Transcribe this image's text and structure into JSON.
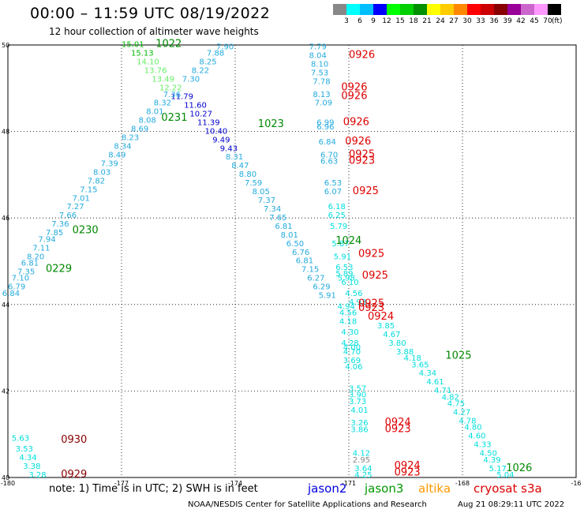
{
  "header": {
    "title": "00:00 – 11:59 UTC 08/19/2022",
    "subtitle": "12 hour collection of altimeter wave heights"
  },
  "legend": {
    "unit": "(ft)",
    "bins": [
      {
        "label": "3",
        "color": "#888888"
      },
      {
        "label": "6",
        "color": "#00ffff"
      },
      {
        "label": "9",
        "color": "#00bfff"
      },
      {
        "label": "12",
        "color": "#0000ff"
      },
      {
        "label": "15",
        "color": "#00ff00"
      },
      {
        "label": "18",
        "color": "#00d000"
      },
      {
        "label": "21",
        "color": "#009000"
      },
      {
        "label": "24",
        "color": "#ffff00"
      },
      {
        "label": "27",
        "color": "#ffcc00"
      },
      {
        "label": "30",
        "color": "#ff8800"
      },
      {
        "label": "33",
        "color": "#ff0000"
      },
      {
        "label": "36",
        "color": "#cc0000"
      },
      {
        "label": "39",
        "color": "#880000"
      },
      {
        "label": "42",
        "color": "#990099"
      },
      {
        "label": "45",
        "color": "#cc66cc"
      },
      {
        "label": "70",
        "color": "#ff99ff"
      },
      {
        "label": "",
        "color": "#000000"
      }
    ]
  },
  "axes": {
    "lon_labels": [
      "-180",
      "-177",
      "-174",
      "-171",
      "-168",
      "-16"
    ],
    "lat_labels": [
      "50",
      "48",
      "46",
      "44",
      "42",
      "40"
    ]
  },
  "chart_data": {
    "type": "scatter",
    "x_range": [
      -180,
      -165
    ],
    "y_range": [
      40,
      50
    ],
    "passes": [
      {
        "label": "1022",
        "lon": -176.1,
        "lat": 49.95,
        "color": "#008800"
      },
      {
        "label": "0231",
        "lon": -175.95,
        "lat": 48.25,
        "color": "#008800"
      },
      {
        "label": "1023",
        "lon": -173.4,
        "lat": 48.1,
        "color": "#008800"
      },
      {
        "label": "0230",
        "lon": -178.3,
        "lat": 45.65,
        "color": "#008800"
      },
      {
        "label": "0229",
        "lon": -179.0,
        "lat": 44.75,
        "color": "#008800"
      },
      {
        "label": "1024",
        "lon": -171.35,
        "lat": 45.4,
        "color": "#008800"
      },
      {
        "label": "1025",
        "lon": -168.45,
        "lat": 42.75,
        "color": "#008800"
      },
      {
        "label": "1026",
        "lon": -166.85,
        "lat": 40.15,
        "color": "#008800"
      },
      {
        "label": "0926",
        "lon": -171.0,
        "lat": 49.7,
        "color": "#dd0000"
      },
      {
        "label": "0926",
        "lon": -171.2,
        "lat": 48.95,
        "color": "#dd0000"
      },
      {
        "label": "0926",
        "lon": -171.2,
        "lat": 48.75,
        "color": "#dd0000"
      },
      {
        "label": "0926",
        "lon": -171.15,
        "lat": 48.15,
        "color": "#dd0000"
      },
      {
        "label": "0926",
        "lon": -171.1,
        "lat": 47.7,
        "color": "#dd0000"
      },
      {
        "label": "0925",
        "lon": -171.0,
        "lat": 47.4,
        "color": "#dd0000"
      },
      {
        "label": "0923",
        "lon": -171.0,
        "lat": 47.25,
        "color": "#dd0000"
      },
      {
        "label": "0925",
        "lon": -170.9,
        "lat": 46.55,
        "color": "#dd0000"
      },
      {
        "label": "0925",
        "lon": -170.75,
        "lat": 45.1,
        "color": "#dd0000"
      },
      {
        "label": "0925",
        "lon": -170.65,
        "lat": 44.6,
        "color": "#dd0000"
      },
      {
        "label": "0925",
        "lon": -170.75,
        "lat": 43.95,
        "color": "#dd0000"
      },
      {
        "label": "0923",
        "lon": -170.75,
        "lat": 43.85,
        "color": "#dd0000"
      },
      {
        "label": "0924",
        "lon": -170.5,
        "lat": 43.65,
        "color": "#dd0000"
      },
      {
        "label": "0924",
        "lon": -170.05,
        "lat": 41.2,
        "color": "#dd0000"
      },
      {
        "label": "0923",
        "lon": -170.05,
        "lat": 41.05,
        "color": "#dd0000"
      },
      {
        "label": "0924",
        "lon": -169.8,
        "lat": 40.2,
        "color": "#dd0000"
      },
      {
        "label": "0923",
        "lon": -169.8,
        "lat": 40.05,
        "color": "#dd0000"
      },
      {
        "label": "0930",
        "lon": -178.6,
        "lat": 40.8,
        "color": "#880000"
      },
      {
        "label": "0929",
        "lon": -178.6,
        "lat": 40.0,
        "color": "#880000"
      }
    ],
    "points": [
      {
        "v": "15.01",
        "lon": -177.0,
        "lat": 49.95,
        "color": "#00bb00"
      },
      {
        "v": "15.13",
        "lon": -176.75,
        "lat": 49.75,
        "color": "#00bb00"
      },
      {
        "v": "14.10",
        "lon": -176.6,
        "lat": 49.55,
        "color": "#66ee66"
      },
      {
        "v": "13.76",
        "lon": -176.4,
        "lat": 49.35,
        "color": "#66ee66"
      },
      {
        "v": "13.49",
        "lon": -176.2,
        "lat": 49.15,
        "color": "#66ee66"
      },
      {
        "v": "12.22",
        "lon": -176.0,
        "lat": 48.95,
        "color": "#66ee66"
      },
      {
        "v": "11.79",
        "lon": -175.7,
        "lat": 48.75,
        "color": "#0000cc"
      },
      {
        "v": "11.60",
        "lon": -175.35,
        "lat": 48.55,
        "color": "#0000cc"
      },
      {
        "v": "10.27",
        "lon": -175.2,
        "lat": 48.35,
        "color": "#0000cc"
      },
      {
        "v": "11.39",
        "lon": -175.0,
        "lat": 48.15,
        "color": "#0000cc"
      },
      {
        "v": "10.40",
        "lon": -174.8,
        "lat": 47.95,
        "color": "#0000cc"
      },
      {
        "v": "9.49",
        "lon": -174.6,
        "lat": 47.75,
        "color": "#0000cc"
      },
      {
        "v": "9.43",
        "lon": -174.4,
        "lat": 47.55,
        "color": "#0000cc"
      },
      {
        "v": "7.90",
        "lon": -174.5,
        "lat": 49.9,
        "color": "#22aadd"
      },
      {
        "v": "7.88",
        "lon": -174.75,
        "lat": 49.75,
        "color": "#22aadd"
      },
      {
        "v": "8.25",
        "lon": -174.95,
        "lat": 49.55,
        "color": "#22aadd"
      },
      {
        "v": "8.22",
        "lon": -175.15,
        "lat": 49.35,
        "color": "#22aadd"
      },
      {
        "v": "7.30",
        "lon": -175.4,
        "lat": 49.15,
        "color": "#22aadd"
      },
      {
        "v": "7.36",
        "lon": -175.9,
        "lat": 48.8,
        "color": "#22aadd"
      },
      {
        "v": "8.32",
        "lon": -176.15,
        "lat": 48.6,
        "color": "#22aadd"
      },
      {
        "v": "8.01",
        "lon": -176.35,
        "lat": 48.4,
        "color": "#22aadd"
      },
      {
        "v": "8.08",
        "lon": -176.55,
        "lat": 48.2,
        "color": "#22aadd"
      },
      {
        "v": "8.69",
        "lon": -176.75,
        "lat": 48.0,
        "color": "#22aadd"
      },
      {
        "v": "8.23",
        "lon": -177.0,
        "lat": 47.8,
        "color": "#22aadd"
      },
      {
        "v": "8.34",
        "lon": -177.2,
        "lat": 47.6,
        "color": "#22aadd"
      },
      {
        "v": "8.49",
        "lon": -177.35,
        "lat": 47.4,
        "color": "#22aadd"
      },
      {
        "v": "7.39",
        "lon": -177.55,
        "lat": 47.2,
        "color": "#22aadd"
      },
      {
        "v": "8.03",
        "lon": -177.75,
        "lat": 47.0,
        "color": "#22aadd"
      },
      {
        "v": "7.82",
        "lon": -177.9,
        "lat": 46.8,
        "color": "#22aadd"
      },
      {
        "v": "7.15",
        "lon": -178.1,
        "lat": 46.6,
        "color": "#22aadd"
      },
      {
        "v": "7.01",
        "lon": -178.3,
        "lat": 46.4,
        "color": "#22aadd"
      },
      {
        "v": "7.27",
        "lon": -178.45,
        "lat": 46.2,
        "color": "#22aadd"
      },
      {
        "v": "7.66",
        "lon": -178.65,
        "lat": 46.0,
        "color": "#22aadd"
      },
      {
        "v": "7.36",
        "lon": -178.85,
        "lat": 45.8,
        "color": "#22aadd"
      },
      {
        "v": "7.85",
        "lon": -179.0,
        "lat": 45.6,
        "color": "#22aadd"
      },
      {
        "v": "7.94",
        "lon": -179.2,
        "lat": 45.45,
        "color": "#22aadd"
      },
      {
        "v": "7.11",
        "lon": -179.35,
        "lat": 45.25,
        "color": "#22aadd"
      },
      {
        "v": "8.20",
        "lon": -179.5,
        "lat": 45.05,
        "color": "#22aadd"
      },
      {
        "v": "6.81",
        "lon": -179.65,
        "lat": 44.9,
        "color": "#22aadd"
      },
      {
        "v": "7.35",
        "lon": -179.75,
        "lat": 44.7,
        "color": "#22aadd"
      },
      {
        "v": "7.10",
        "lon": -179.9,
        "lat": 44.55,
        "color": "#22aadd"
      },
      {
        "v": "6.79",
        "lon": -180.0,
        "lat": 44.35,
        "color": "#22aadd"
      },
      {
        "v": "6.84",
        "lon": -180.15,
        "lat": 44.2,
        "color": "#22aadd"
      },
      {
        "v": "8.31",
        "lon": -174.25,
        "lat": 47.35,
        "color": "#22aadd"
      },
      {
        "v": "8.47",
        "lon": -174.1,
        "lat": 47.15,
        "color": "#22aadd"
      },
      {
        "v": "8.80",
        "lon": -173.9,
        "lat": 46.95,
        "color": "#22aadd"
      },
      {
        "v": "7.59",
        "lon": -173.75,
        "lat": 46.75,
        "color": "#22aadd"
      },
      {
        "v": "8.05",
        "lon": -173.55,
        "lat": 46.55,
        "color": "#22aadd"
      },
      {
        "v": "7.37",
        "lon": -173.4,
        "lat": 46.35,
        "color": "#22aadd"
      },
      {
        "v": "7.34",
        "lon": -173.25,
        "lat": 46.15,
        "color": "#22aadd"
      },
      {
        "v": "7.65",
        "lon": -173.1,
        "lat": 45.95,
        "color": "#22aadd"
      },
      {
        "v": "6.81",
        "lon": -172.95,
        "lat": 45.75,
        "color": "#22aadd"
      },
      {
        "v": "8.01",
        "lon": -172.8,
        "lat": 45.55,
        "color": "#22aadd"
      },
      {
        "v": "6.50",
        "lon": -172.65,
        "lat": 45.35,
        "color": "#22aadd"
      },
      {
        "v": "6.76",
        "lon": -172.5,
        "lat": 45.15,
        "color": "#22aadd"
      },
      {
        "v": "6.81",
        "lon": -172.4,
        "lat": 44.95,
        "color": "#22aadd"
      },
      {
        "v": "7.15",
        "lon": -172.25,
        "lat": 44.75,
        "color": "#22aadd"
      },
      {
        "v": "6.27",
        "lon": -172.1,
        "lat": 44.55,
        "color": "#22aadd"
      },
      {
        "v": "6.29",
        "lon": -171.95,
        "lat": 44.35,
        "color": "#22aadd"
      },
      {
        "v": "5.91",
        "lon": -171.8,
        "lat": 44.15,
        "color": "#22aadd"
      },
      {
        "v": "7.79",
        "lon": -172.05,
        "lat": 49.9,
        "color": "#22aadd"
      },
      {
        "v": "8.04",
        "lon": -172.05,
        "lat": 49.7,
        "color": "#22aadd"
      },
      {
        "v": "8.10",
        "lon": -172.0,
        "lat": 49.5,
        "color": "#22aadd"
      },
      {
        "v": "7.53",
        "lon": -172.0,
        "lat": 49.3,
        "color": "#22aadd"
      },
      {
        "v": "7.78",
        "lon": -171.95,
        "lat": 49.1,
        "color": "#22aadd"
      },
      {
        "v": "8.13",
        "lon": -171.95,
        "lat": 48.8,
        "color": "#22aadd"
      },
      {
        "v": "7.09",
        "lon": -171.9,
        "lat": 48.6,
        "color": "#22aadd"
      },
      {
        "v": "6.99",
        "lon": -171.85,
        "lat": 48.15,
        "color": "#22aadd"
      },
      {
        "v": "6.96",
        "lon": -171.85,
        "lat": 48.05,
        "color": "#22aadd"
      },
      {
        "v": "6.84",
        "lon": -171.8,
        "lat": 47.7,
        "color": "#22aadd"
      },
      {
        "v": "6.70",
        "lon": -171.75,
        "lat": 47.4,
        "color": "#22aadd"
      },
      {
        "v": "6.63",
        "lon": -171.75,
        "lat": 47.25,
        "color": "#22aadd"
      },
      {
        "v": "6.53",
        "lon": -171.65,
        "lat": 46.75,
        "color": "#22aadd"
      },
      {
        "v": "6.07",
        "lon": -171.65,
        "lat": 46.55,
        "color": "#22aadd"
      },
      {
        "v": "6.18",
        "lon": -171.55,
        "lat": 46.2,
        "color": "#00dddd"
      },
      {
        "v": "6.25",
        "lon": -171.55,
        "lat": 46.0,
        "color": "#00dddd"
      },
      {
        "v": "5.79",
        "lon": -171.5,
        "lat": 45.75,
        "color": "#00dddd"
      },
      {
        "v": "5.87",
        "lon": -171.45,
        "lat": 45.35,
        "color": "#00dddd"
      },
      {
        "v": "5.91",
        "lon": -171.4,
        "lat": 45.05,
        "color": "#00dddd"
      },
      {
        "v": "6.53",
        "lon": -171.35,
        "lat": 44.8,
        "color": "#00dddd"
      },
      {
        "v": "5.89",
        "lon": -171.35,
        "lat": 44.65,
        "color": "#00dddd"
      },
      {
        "v": "5.98",
        "lon": -171.3,
        "lat": 44.55,
        "color": "#00dddd"
      },
      {
        "v": "6.10",
        "lon": -171.2,
        "lat": 44.45,
        "color": "#00dddd"
      },
      {
        "v": "4.56",
        "lon": -171.1,
        "lat": 44.2,
        "color": "#00dddd"
      },
      {
        "v": "4.93",
        "lon": -171.0,
        "lat": 44.0,
        "color": "#00dddd"
      },
      {
        "v": "4.94",
        "lon": -171.3,
        "lat": 43.9,
        "color": "#00dddd"
      },
      {
        "v": "4.56",
        "lon": -171.25,
        "lat": 43.75,
        "color": "#00dddd"
      },
      {
        "v": "4.18",
        "lon": -171.25,
        "lat": 43.55,
        "color": "#00dddd"
      },
      {
        "v": "4.30",
        "lon": -171.2,
        "lat": 43.3,
        "color": "#00dddd"
      },
      {
        "v": "4.28",
        "lon": -171.2,
        "lat": 43.05,
        "color": "#00dddd"
      },
      {
        "v": "4.00",
        "lon": -171.15,
        "lat": 42.95,
        "color": "#00dddd"
      },
      {
        "v": "4.70",
        "lon": -171.15,
        "lat": 42.85,
        "color": "#00dddd"
      },
      {
        "v": "3.69",
        "lon": -171.15,
        "lat": 42.65,
        "color": "#00dddd"
      },
      {
        "v": "4.06",
        "lon": -171.1,
        "lat": 42.5,
        "color": "#00dddd"
      },
      {
        "v": "3.57",
        "lon": -171.0,
        "lat": 42.0,
        "color": "#00dddd"
      },
      {
        "v": "3.90",
        "lon": -171.0,
        "lat": 41.85,
        "color": "#00dddd"
      },
      {
        "v": "3.73",
        "lon": -171.0,
        "lat": 41.7,
        "color": "#00dddd"
      },
      {
        "v": "4.01",
        "lon": -170.95,
        "lat": 41.5,
        "color": "#00dddd"
      },
      {
        "v": "3.26",
        "lon": -170.95,
        "lat": 41.2,
        "color": "#00dddd"
      },
      {
        "v": "3.86",
        "lon": -170.95,
        "lat": 41.05,
        "color": "#00dddd"
      },
      {
        "v": "4.12",
        "lon": -170.9,
        "lat": 40.5,
        "color": "#00dddd"
      },
      {
        "v": "2.95",
        "lon": -170.9,
        "lat": 40.35,
        "color": "#888888"
      },
      {
        "v": "3.64",
        "lon": -170.85,
        "lat": 40.15,
        "color": "#00dddd"
      },
      {
        "v": "4.25",
        "lon": -170.85,
        "lat": 40.0,
        "color": "#00dddd"
      },
      {
        "v": "3.85",
        "lon": -170.25,
        "lat": 43.45,
        "color": "#00dddd"
      },
      {
        "v": "4.67",
        "lon": -170.1,
        "lat": 43.25,
        "color": "#00dddd"
      },
      {
        "v": "3.80",
        "lon": -169.95,
        "lat": 43.05,
        "color": "#00dddd"
      },
      {
        "v": "3.88",
        "lon": -169.75,
        "lat": 42.85,
        "color": "#00dddd"
      },
      {
        "v": "4.18",
        "lon": -169.55,
        "lat": 42.7,
        "color": "#00dddd"
      },
      {
        "v": "3.65",
        "lon": -169.35,
        "lat": 42.55,
        "color": "#00dddd"
      },
      {
        "v": "4.34",
        "lon": -169.15,
        "lat": 42.35,
        "color": "#00dddd"
      },
      {
        "v": "4.61",
        "lon": -168.95,
        "lat": 42.15,
        "color": "#00dddd"
      },
      {
        "v": "4.71",
        "lon": -168.75,
        "lat": 41.95,
        "color": "#00dddd"
      },
      {
        "v": "4.82",
        "lon": -168.55,
        "lat": 41.8,
        "color": "#00dddd"
      },
      {
        "v": "4.75",
        "lon": -168.4,
        "lat": 41.65,
        "color": "#00dddd"
      },
      {
        "v": "4.27",
        "lon": -168.25,
        "lat": 41.45,
        "color": "#00dddd"
      },
      {
        "v": "4.78",
        "lon": -168.1,
        "lat": 41.25,
        "color": "#00dddd"
      },
      {
        "v": "4.80",
        "lon": -167.95,
        "lat": 41.1,
        "color": "#00dddd"
      },
      {
        "v": "4.60",
        "lon": -167.85,
        "lat": 40.9,
        "color": "#00dddd"
      },
      {
        "v": "4.33",
        "lon": -167.7,
        "lat": 40.7,
        "color": "#00dddd"
      },
      {
        "v": "4.50",
        "lon": -167.55,
        "lat": 40.5,
        "color": "#00dddd"
      },
      {
        "v": "4.39",
        "lon": -167.45,
        "lat": 40.35,
        "color": "#00dddd"
      },
      {
        "v": "5.17",
        "lon": -167.3,
        "lat": 40.15,
        "color": "#00dddd"
      },
      {
        "v": "5.04",
        "lon": -167.1,
        "lat": 40.0,
        "color": "#00dddd"
      },
      {
        "v": "5.63",
        "lon": -179.9,
        "lat": 40.85,
        "color": "#00dddd"
      },
      {
        "v": "3.53",
        "lon": -179.8,
        "lat": 40.6,
        "color": "#00dddd"
      },
      {
        "v": "4.34",
        "lon": -179.7,
        "lat": 40.4,
        "color": "#00dddd"
      },
      {
        "v": "3.38",
        "lon": -179.6,
        "lat": 40.2,
        "color": "#00dddd"
      },
      {
        "v": "3.28",
        "lon": -179.45,
        "lat": 40.0,
        "color": "#00dddd"
      }
    ]
  },
  "footer": {
    "note": "note:  1) Time is in UTC;  2) SWH is in feet",
    "satellites": [
      {
        "name": "jason2",
        "color": "#0000dd"
      },
      {
        "name": "jason3",
        "color": "#009900"
      },
      {
        "name": "altika",
        "color": "#ff9900"
      },
      {
        "name": "cryosat s3a",
        "color": "#dd0000"
      }
    ],
    "credit": "NOAA/NESDIS Center for Satellite Applications and Research",
    "timestamp": "Aug 21 08:29:11 UTC 2022"
  }
}
